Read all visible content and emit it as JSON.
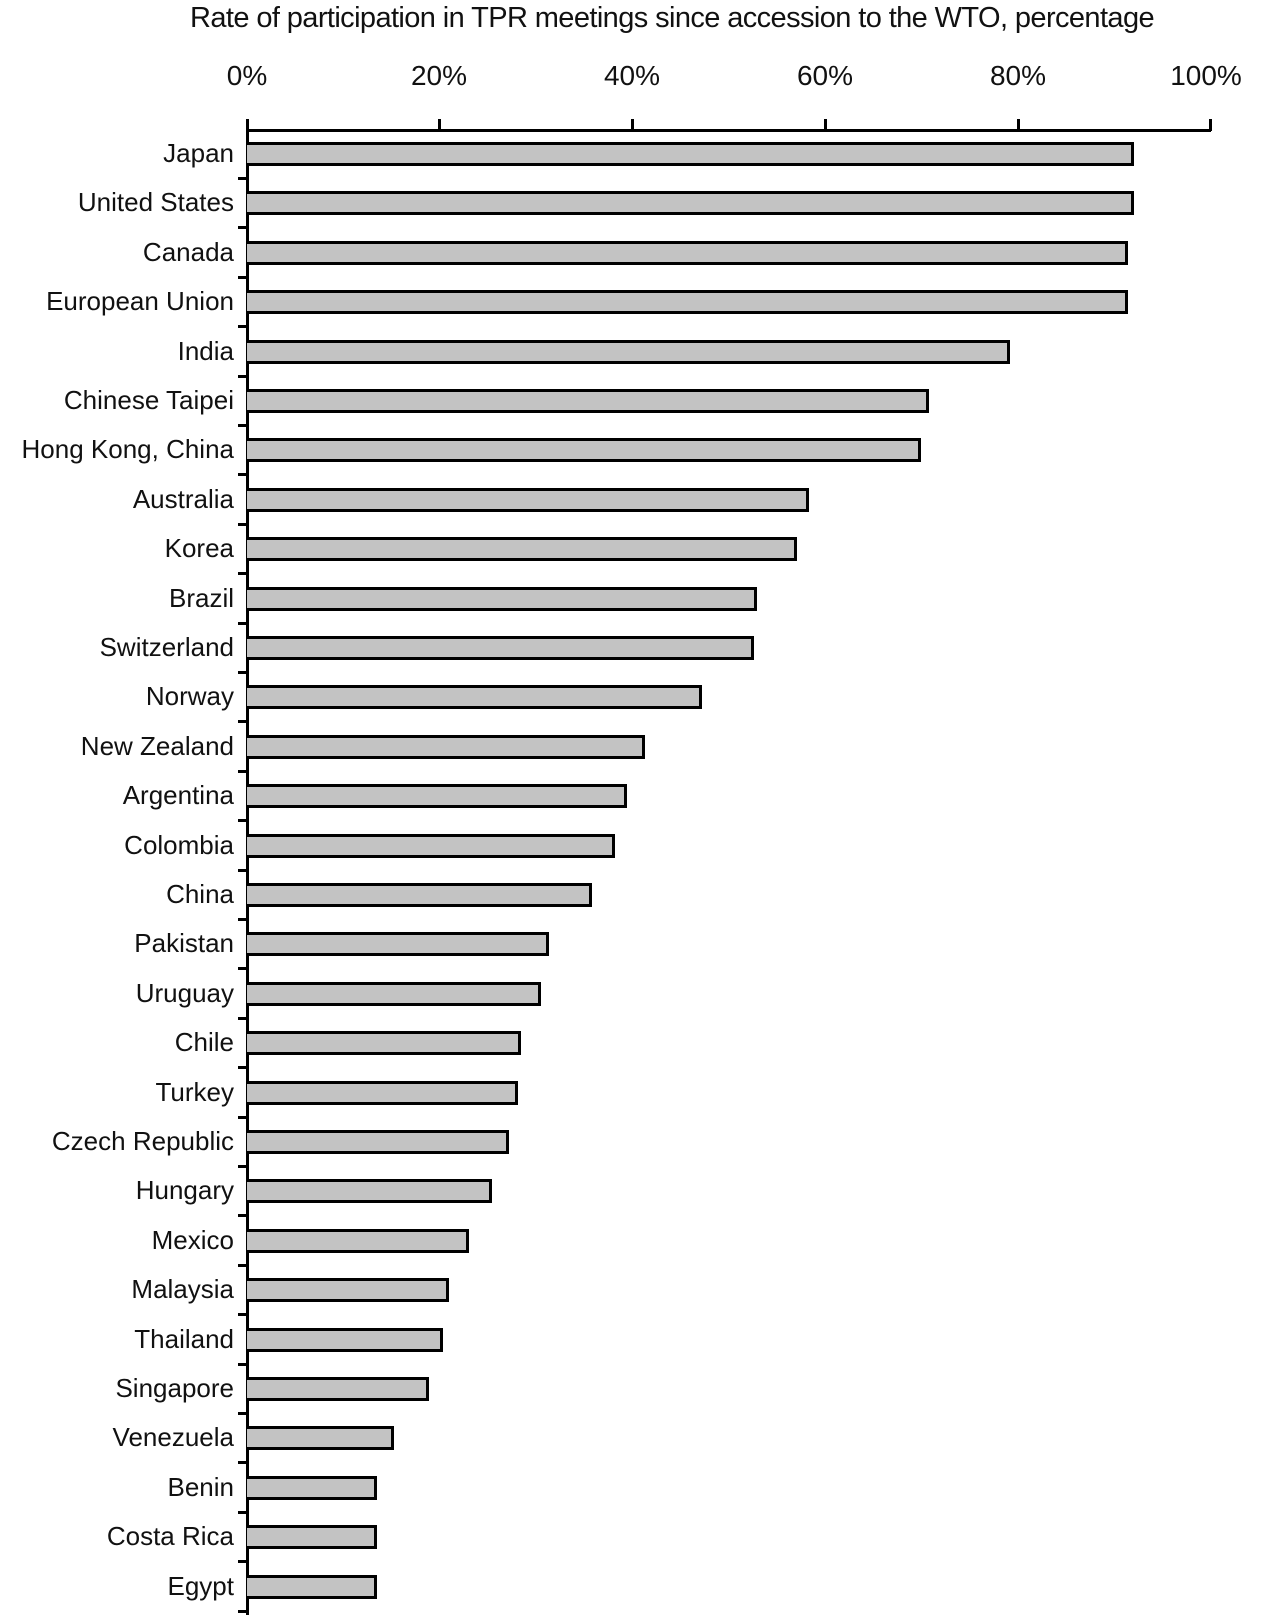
{
  "chart_data": {
    "type": "bar",
    "orientation": "horizontal",
    "title": "Rate of participation in TPR meetings since accession to the WTO, percentage",
    "xlabel": "",
    "ylabel": "",
    "xlim": [
      0,
      100
    ],
    "x_axis_position": "top",
    "tick_labels": [
      "0%",
      "20%",
      "40%",
      "60%",
      "80%",
      "100%"
    ],
    "tick_values": [
      0,
      20,
      40,
      60,
      80,
      100
    ],
    "grid": false,
    "legend": null,
    "bar_fill": "#c3c3c3",
    "bar_edge": "#000000",
    "categories": [
      "Japan",
      "United States",
      "Canada",
      "European Union",
      "India",
      "Chinese Taipei",
      "Hong Kong, China",
      "Australia",
      "Korea",
      "Brazil",
      "Switzerland",
      "Norway",
      "New Zealand",
      "Argentina",
      "Colombia",
      "China",
      "Pakistan",
      "Uruguay",
      "Chile",
      "Turkey",
      "Czech Republic",
      "Hungary",
      "Mexico",
      "Malaysia",
      "Thailand",
      "Singapore",
      "Venezuela",
      "Benin",
      "Costa Rica",
      "Egypt"
    ],
    "values": [
      91.8,
      91.8,
      91.2,
      91.2,
      78.9,
      70.5,
      69.7,
      58.0,
      56.8,
      52.6,
      52.3,
      46.9,
      41.0,
      39.1,
      37.9,
      35.5,
      31.0,
      30.2,
      28.1,
      27.8,
      26.9,
      25.1,
      22.7,
      20.7,
      20.0,
      18.6,
      15.0,
      13.2,
      13.2,
      13.2
    ]
  }
}
